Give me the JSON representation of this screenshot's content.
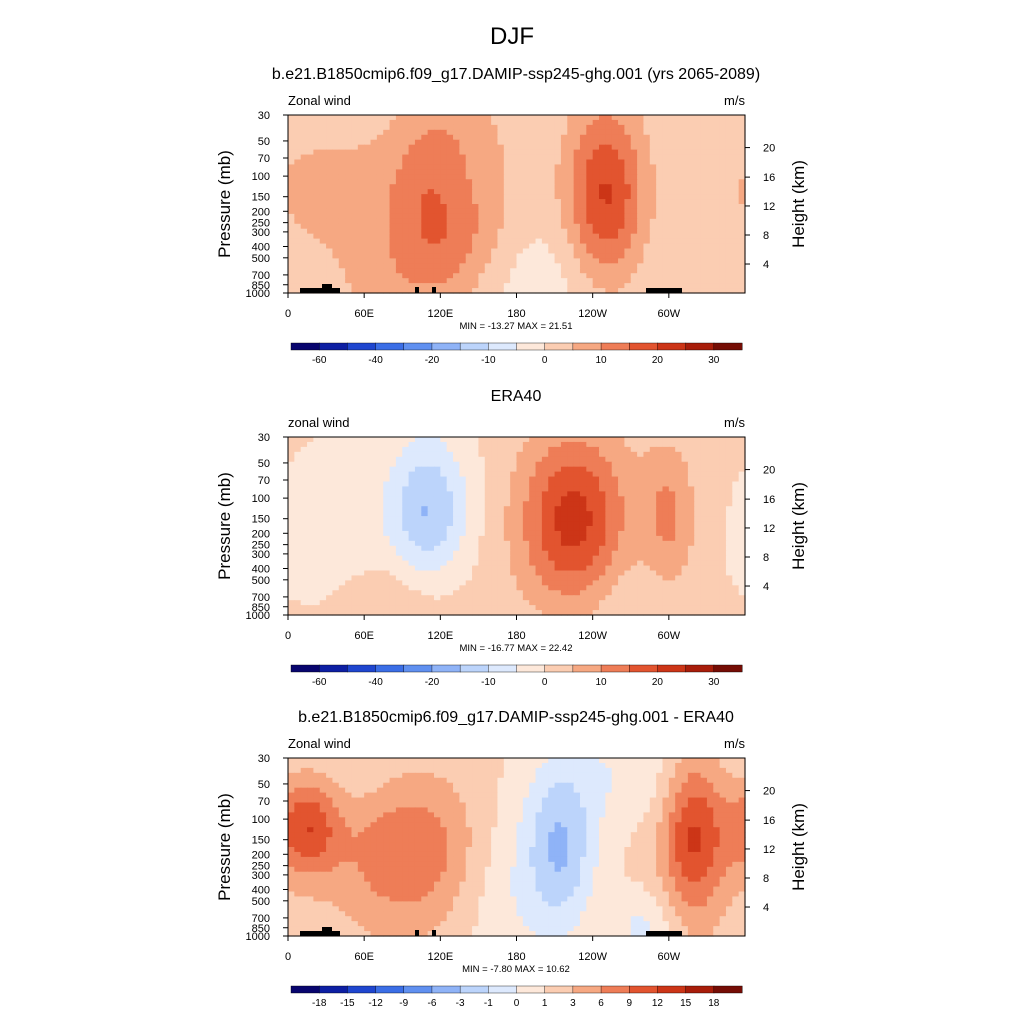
{
  "figure_title": "DJF",
  "colors": {
    "full_scale": [
      "#08056e",
      "#0d1fa3",
      "#1f46cf",
      "#3b6ee6",
      "#6090f0",
      "#8fb3f7",
      "#bcd4fb",
      "#dde9fd",
      "#fde8da",
      "#fbcdb2",
      "#f6a882",
      "#ee7d57",
      "#e2542f",
      "#cc3517",
      "#a81d0a",
      "#750d05"
    ],
    "bounds": [
      -70,
      -60,
      -50,
      -40,
      -30,
      -20,
      -15,
      -10,
      -5,
      0,
      5,
      10,
      15,
      20,
      25,
      30,
      35
    ]
  },
  "chart_data": [
    {
      "type": "contour",
      "title": "b.e21.B1850cmip6.f09_g17.DAMIP-ssp245-ghg.001 (yrs 2065-2089)",
      "left_label": "Zonal wind",
      "right_label": "m/s",
      "ylabel": "Pressure (mb)",
      "y2label": "Height (km)",
      "x_ticks": [
        "0",
        "60E",
        "120E",
        "180",
        "120W",
        "60W"
      ],
      "y_ticks": [
        "30",
        "50",
        "70",
        "100",
        "150",
        "200",
        "250",
        "300",
        "400",
        "500",
        "700",
        "850",
        "1000"
      ],
      "y2_ticks": [
        "20",
        "16",
        "12",
        "8",
        "4"
      ],
      "stats": "MIN = -13.27  MAX =  21.51",
      "colorbar_labels": [
        "-60",
        "-40",
        "-20",
        "-10",
        "0",
        "10",
        "20",
        "30"
      ],
      "min": -13.27,
      "max": 21.51,
      "features": [
        {
          "lon": 127,
          "p": 150,
          "value": 21,
          "sigma_lon": 30,
          "sigma_logp": 0.55
        },
        {
          "lon": 250,
          "p": 150,
          "value": 20,
          "sigma_lon": 22,
          "sigma_logp": 0.55
        },
        {
          "lon": 30,
          "p": 130,
          "value": 6,
          "sigma_lon": 40,
          "sigma_logp": 0.4
        },
        {
          "lon": 135,
          "p": 120,
          "value": -9,
          "sigma_lon": 22,
          "sigma_logp": 0.35
        },
        {
          "lon": 200,
          "p": 800,
          "value": -4,
          "sigma_lon": 55,
          "sigma_logp": 0.4
        },
        {
          "lon": 80,
          "p": 750,
          "value": 5,
          "sigma_lon": 35,
          "sigma_logp": 0.35
        }
      ]
    },
    {
      "type": "contour",
      "title": "ERA40",
      "left_label": "zonal wind",
      "right_label": "m/s",
      "ylabel": "Pressure (mb)",
      "y2label": "Height (km)",
      "x_ticks": [
        "0",
        "60E",
        "120E",
        "180",
        "120W",
        "60W"
      ],
      "y_ticks": [
        "30",
        "50",
        "70",
        "100",
        "150",
        "200",
        "250",
        "300",
        "400",
        "500",
        "700",
        "850",
        "1000"
      ],
      "y2_ticks": [
        "20",
        "16",
        "12",
        "8",
        "4"
      ],
      "stats": "MIN = -16.77  MAX =  22.42",
      "colorbar_labels": [
        "-60",
        "-40",
        "-20",
        "-10",
        "0",
        "10",
        "20",
        "30"
      ],
      "min": -16.77,
      "max": 22.42,
      "features": [
        {
          "lon": 225,
          "p": 170,
          "value": 22,
          "sigma_lon": 30,
          "sigma_logp": 0.55
        },
        {
          "lon": 300,
          "p": 150,
          "value": 10,
          "sigma_lon": 15,
          "sigma_logp": 0.45
        },
        {
          "lon": 110,
          "p": 130,
          "value": -16,
          "sigma_lon": 22,
          "sigma_logp": 0.45
        },
        {
          "lon": 40,
          "p": 250,
          "value": -5,
          "sigma_lon": 30,
          "sigma_logp": 0.5
        },
        {
          "lon": 250,
          "p": 800,
          "value": -4,
          "sigma_lon": 40,
          "sigma_logp": 0.4
        },
        {
          "lon": 80,
          "p": 750,
          "value": 5,
          "sigma_lon": 40,
          "sigma_logp": 0.35
        }
      ]
    },
    {
      "type": "contour",
      "title": "b.e21.B1850cmip6.f09_g17.DAMIP-ssp245-ghg.001 - ERA40",
      "left_label": "Zonal wind",
      "right_label": "m/s",
      "ylabel": "Pressure (mb)",
      "y2label": "Height (km)",
      "x_ticks": [
        "0",
        "60E",
        "120E",
        "180",
        "120W",
        "60W"
      ],
      "y_ticks": [
        "30",
        "50",
        "70",
        "100",
        "150",
        "200",
        "250",
        "300",
        "400",
        "500",
        "700",
        "850",
        "1000"
      ],
      "y2_ticks": [
        "20",
        "16",
        "12",
        "8",
        "4"
      ],
      "stats": "MIN = -7.80  MAX =  10.62",
      "colorbar_labels": [
        "-18",
        "-15",
        "-12",
        "-9",
        "-6",
        "-3",
        "-1",
        "0",
        "1",
        "3",
        "6",
        "9",
        "12",
        "15",
        "18"
      ],
      "min": -7.8,
      "max": 10.62,
      "features": [
        {
          "lon": 215,
          "p": 180,
          "value": -7.8,
          "sigma_lon": 20,
          "sigma_logp": 0.5
        },
        {
          "lon": 320,
          "p": 130,
          "value": 10,
          "sigma_lon": 18,
          "sigma_logp": 0.5
        },
        {
          "lon": 15,
          "p": 110,
          "value": 9,
          "sigma_lon": 18,
          "sigma_logp": 0.3
        },
        {
          "lon": 95,
          "p": 170,
          "value": 7,
          "sigma_lon": 40,
          "sigma_logp": 0.5
        },
        {
          "lon": 170,
          "p": 400,
          "value": -3,
          "sigma_lon": 30,
          "sigma_logp": 0.6
        },
        {
          "lon": 270,
          "p": 40,
          "value": -3,
          "sigma_lon": 45,
          "sigma_logp": 0.35
        },
        {
          "lon": 60,
          "p": 50,
          "value": -2,
          "sigma_lon": 50,
          "sigma_logp": 0.3
        },
        {
          "lon": 280,
          "p": 900,
          "value": -4,
          "sigma_lon": 18,
          "sigma_logp": 0.25
        }
      ]
    }
  ]
}
